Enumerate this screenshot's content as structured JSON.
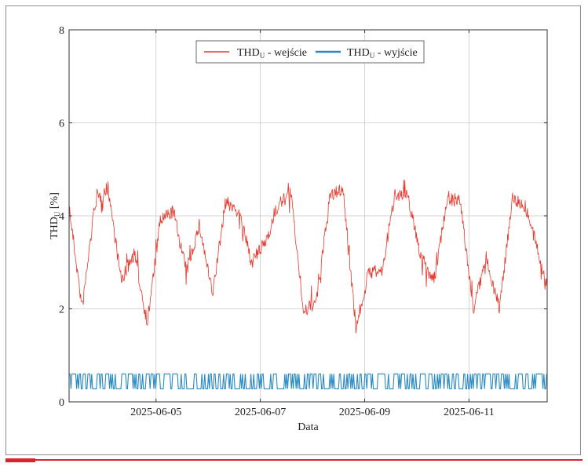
{
  "chart_data": {
    "type": "line",
    "xlabel": "Data",
    "ylabel": {
      "main": "THD",
      "sub": "U",
      "unit": " [%]"
    },
    "ylim": [
      0,
      8
    ],
    "yticks": [
      "0",
      "2",
      "4",
      "6",
      "8"
    ],
    "xlim": [
      "2025-06-03T08:00",
      "2025-06-12T12:00"
    ],
    "xticks": [
      "2025-06-05",
      "2025-06-07",
      "2025-06-09",
      "2025-06-11"
    ],
    "grid": true,
    "legend_position": "top-center",
    "series": [
      {
        "name": {
          "main": "THD",
          "sub": "U",
          "rest": " - wejście"
        },
        "color": "#e8372c",
        "x": [
          "2025-06-03T08:00",
          "2025-06-03T14:00",
          "2025-06-03T20:00",
          "2025-06-04T02:00",
          "2025-06-04T08:00",
          "2025-06-04T14:00",
          "2025-06-04T20:00",
          "2025-06-05T02:00",
          "2025-06-05T08:00",
          "2025-06-05T14:00",
          "2025-06-05T20:00",
          "2025-06-06T02:00",
          "2025-06-06T08:00",
          "2025-06-06T14:00",
          "2025-06-06T20:00",
          "2025-06-07T02:00",
          "2025-06-07T08:00",
          "2025-06-07T14:00",
          "2025-06-07T20:00",
          "2025-06-08T02:00",
          "2025-06-08T08:00",
          "2025-06-08T14:00",
          "2025-06-08T20:00",
          "2025-06-09T02:00",
          "2025-06-09T08:00",
          "2025-06-09T14:00",
          "2025-06-09T20:00",
          "2025-06-10T02:00",
          "2025-06-10T08:00",
          "2025-06-10T14:00",
          "2025-06-10T20:00",
          "2025-06-11T02:00",
          "2025-06-11T08:00",
          "2025-06-11T14:00",
          "2025-06-11T20:00",
          "2025-06-12T02:00",
          "2025-06-12T08:00",
          "2025-06-12T12:00"
        ],
        "y": [
          4.2,
          2.0,
          4.3,
          4.6,
          2.6,
          3.2,
          1.7,
          3.9,
          4.1,
          2.8,
          3.8,
          2.3,
          4.3,
          4.1,
          3.0,
          3.4,
          4.2,
          4.5,
          1.9,
          2.2,
          4.4,
          4.6,
          1.6,
          2.8,
          2.8,
          4.5,
          4.4,
          3.1,
          2.6,
          4.4,
          4.3,
          2.0,
          3.1,
          2.0,
          4.4,
          4.2,
          3.2,
          2.5
        ]
      },
      {
        "name": {
          "main": "THD",
          "sub": "U",
          "rest": " - wyjście"
        },
        "color": "#2a8ac2",
        "x": [
          "2025-06-03T08:00",
          "2025-06-03T14:00",
          "2025-06-03T20:00",
          "2025-06-04T02:00",
          "2025-06-04T08:00",
          "2025-06-04T14:00",
          "2025-06-04T20:00",
          "2025-06-05T02:00",
          "2025-06-05T08:00",
          "2025-06-05T14:00",
          "2025-06-05T20:00",
          "2025-06-06T02:00",
          "2025-06-06T08:00",
          "2025-06-06T14:00",
          "2025-06-06T20:00",
          "2025-06-07T02:00",
          "2025-06-07T08:00",
          "2025-06-07T14:00",
          "2025-06-07T20:00",
          "2025-06-08T02:00",
          "2025-06-08T08:00",
          "2025-06-08T14:00",
          "2025-06-08T20:00",
          "2025-06-09T02:00",
          "2025-06-09T08:00",
          "2025-06-09T14:00",
          "2025-06-09T20:00",
          "2025-06-10T02:00",
          "2025-06-10T08:00",
          "2025-06-10T14:00",
          "2025-06-10T20:00",
          "2025-06-11T02:00",
          "2025-06-11T08:00",
          "2025-06-11T14:00",
          "2025-06-11T20:00",
          "2025-06-12T02:00",
          "2025-06-12T08:00",
          "2025-06-12T12:00"
        ],
        "y": [
          0.45,
          0.3,
          0.5,
          0.45,
          0.5,
          0.4,
          0.3,
          0.45,
          0.5,
          0.4,
          0.45,
          0.3,
          0.5,
          0.45,
          0.4,
          0.35,
          0.5,
          0.45,
          0.3,
          0.35,
          0.45,
          0.3,
          0.3,
          0.45,
          0.5,
          0.4,
          0.45,
          0.3,
          0.5,
          0.45,
          0.4,
          0.35,
          0.5,
          0.45,
          0.4,
          0.35,
          0.45,
          0.4
        ],
        "range": [
          0.28,
          0.6
        ]
      }
    ]
  }
}
